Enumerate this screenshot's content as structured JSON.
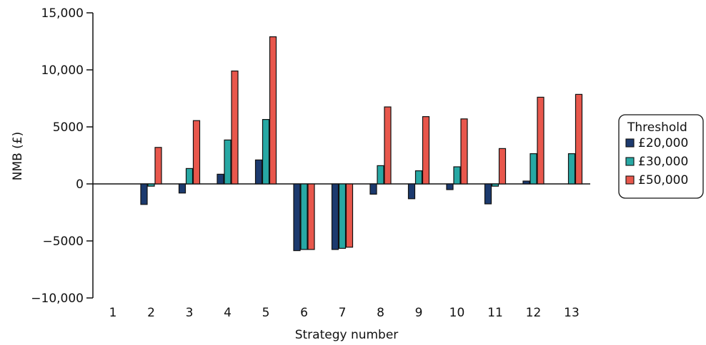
{
  "chart_data": {
    "type": "bar",
    "xlabel": "Strategy number",
    "ylabel": "NMB (£)",
    "ylim": [
      -10000,
      15000
    ],
    "yticks": [
      -10000,
      -5000,
      0,
      5000,
      10000,
      15000
    ],
    "ytick_labels": [
      "−10,000",
      "−5000",
      "0",
      "5000",
      "10,000",
      "15,000"
    ],
    "categories": [
      "1",
      "2",
      "3",
      "4",
      "5",
      "6",
      "7",
      "8",
      "9",
      "10",
      "11",
      "12",
      "13"
    ],
    "legend": {
      "title": "Threshold",
      "position": "right"
    },
    "series": [
      {
        "name": "£20,000",
        "color": "#1c3a6e",
        "values": [
          0,
          -1800,
          -800,
          850,
          2100,
          -5850,
          -5750,
          -900,
          -1300,
          -500,
          -1750,
          250,
          0
        ]
      },
      {
        "name": "£30,000",
        "color": "#27a8a4",
        "values": [
          0,
          -200,
          1350,
          3850,
          5650,
          -5750,
          -5650,
          1600,
          1150,
          1500,
          -200,
          2650,
          2650
        ]
      },
      {
        "name": "£50,000",
        "color": "#e8574c",
        "values": [
          0,
          3200,
          5550,
          9900,
          12900,
          -5750,
          -5550,
          6750,
          5900,
          5700,
          3100,
          7600,
          7850
        ]
      }
    ]
  }
}
